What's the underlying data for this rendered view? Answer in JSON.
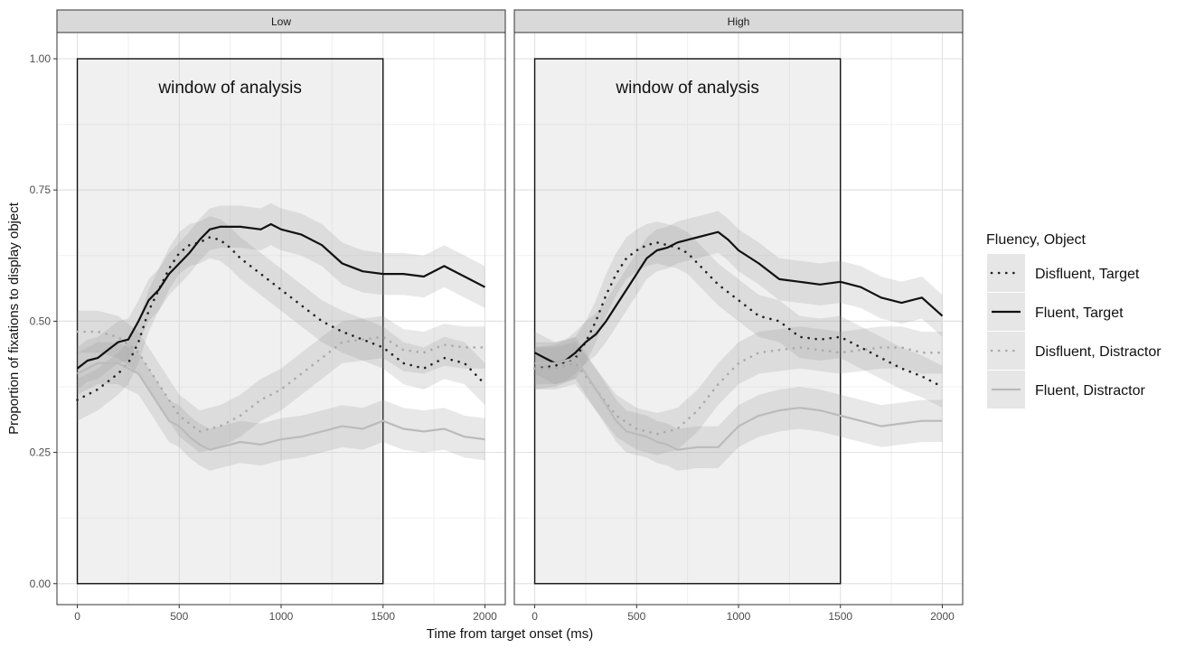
{
  "chart_data": {
    "type": "line",
    "xlabel": "Time from target onset (ms)",
    "ylabel": "Proportion of fixations to display object",
    "xlim": [
      -100,
      2100
    ],
    "ylim": [
      -0.04,
      1.05
    ],
    "x_ticks": [
      0,
      500,
      1000,
      1500,
      2000
    ],
    "x_tick_labels": [
      "0",
      "500",
      "1000",
      "1500",
      "2000"
    ],
    "y_ticks": [
      0,
      0.25,
      0.5,
      0.75,
      1.0
    ],
    "y_tick_labels": [
      "0.00",
      "0.25",
      "0.50",
      "0.75",
      "1.00"
    ],
    "grid": true,
    "ribbon_halfwidth": 0.04,
    "window": {
      "x_start": 0,
      "x_end": 1500,
      "y_start": 0,
      "y_end": 1,
      "label": "window of analysis"
    },
    "legend": {
      "title": "Fluency, Object",
      "position": "right",
      "entries": [
        "Disfluent, Target",
        "Fluent, Target",
        "Disfluent, Distractor",
        "Fluent, Distractor"
      ]
    },
    "panels": [
      {
        "name": "Low",
        "series": [
          {
            "name": "Disfluent, Target",
            "style": "dotted",
            "color": "#222222",
            "x": [
              0,
              100,
              200,
              250,
              300,
              350,
              400,
              450,
              500,
              550,
              600,
              650,
              700,
              750,
              800,
              900,
              1000,
              1100,
              1200,
              1300,
              1400,
              1500,
              1600,
              1700,
              1800,
              1900,
              2000
            ],
            "y": [
              0.35,
              0.37,
              0.4,
              0.42,
              0.46,
              0.52,
              0.56,
              0.6,
              0.63,
              0.645,
              0.65,
              0.66,
              0.655,
              0.64,
              0.62,
              0.59,
              0.56,
              0.53,
              0.5,
              0.48,
              0.465,
              0.45,
              0.42,
              0.41,
              0.43,
              0.42,
              0.38
            ]
          },
          {
            "name": "Fluent, Target",
            "style": "solid",
            "color": "#111111",
            "x": [
              0,
              50,
              100,
              150,
              200,
              250,
              300,
              350,
              400,
              450,
              500,
              550,
              600,
              650,
              700,
              800,
              900,
              950,
              1000,
              1100,
              1200,
              1300,
              1400,
              1500,
              1600,
              1700,
              1800,
              1900,
              2000
            ],
            "y": [
              0.41,
              0.425,
              0.43,
              0.445,
              0.46,
              0.465,
              0.5,
              0.54,
              0.56,
              0.59,
              0.61,
              0.63,
              0.655,
              0.675,
              0.68,
              0.68,
              0.675,
              0.685,
              0.675,
              0.665,
              0.645,
              0.61,
              0.595,
              0.59,
              0.59,
              0.585,
              0.605,
              0.585,
              0.565
            ]
          },
          {
            "name": "Disfluent, Distractor",
            "style": "dotted",
            "color": "#aaaaaa",
            "x": [
              0,
              100,
              200,
              300,
              400,
              500,
              600,
              700,
              800,
              900,
              1000,
              1100,
              1200,
              1300,
              1400,
              1500,
              1600,
              1700,
              1800,
              1900,
              2000
            ],
            "y": [
              0.48,
              0.48,
              0.47,
              0.44,
              0.38,
              0.32,
              0.29,
              0.3,
              0.32,
              0.35,
              0.37,
              0.4,
              0.43,
              0.46,
              0.465,
              0.47,
              0.445,
              0.44,
              0.455,
              0.45,
              0.45
            ]
          },
          {
            "name": "Fluent, Distractor",
            "style": "solid",
            "color": "#bbbbbb",
            "x": [
              0,
              100,
              200,
              300,
              350,
              400,
              450,
              500,
              550,
              600,
              650,
              700,
              800,
              900,
              1000,
              1100,
              1200,
              1300,
              1400,
              1500,
              1600,
              1700,
              1800,
              1900,
              2000
            ],
            "y": [
              0.4,
              0.42,
              0.42,
              0.4,
              0.37,
              0.34,
              0.31,
              0.3,
              0.28,
              0.265,
              0.255,
              0.26,
              0.27,
              0.265,
              0.275,
              0.28,
              0.29,
              0.3,
              0.295,
              0.31,
              0.295,
              0.29,
              0.295,
              0.28,
              0.275
            ]
          }
        ]
      },
      {
        "name": "High",
        "series": [
          {
            "name": "Disfluent, Target",
            "style": "dotted",
            "color": "#222222",
            "x": [
              0,
              100,
              200,
              250,
              300,
              350,
              400,
              450,
              500,
              550,
              600,
              650,
              700,
              750,
              800,
              900,
              1000,
              1100,
              1200,
              1300,
              1400,
              1500,
              1600,
              1700,
              1800,
              1900,
              2000
            ],
            "y": [
              0.41,
              0.415,
              0.43,
              0.46,
              0.5,
              0.55,
              0.59,
              0.62,
              0.635,
              0.645,
              0.65,
              0.645,
              0.64,
              0.63,
              0.61,
              0.57,
              0.54,
              0.51,
              0.5,
              0.47,
              0.465,
              0.47,
              0.45,
              0.43,
              0.41,
              0.395,
              0.375
            ]
          },
          {
            "name": "Fluent, Target",
            "style": "solid",
            "color": "#111111",
            "x": [
              0,
              50,
              100,
              150,
              200,
              250,
              300,
              350,
              400,
              450,
              500,
              550,
              600,
              650,
              700,
              750,
              800,
              850,
              900,
              950,
              1000,
              1100,
              1200,
              1300,
              1400,
              1500,
              1600,
              1700,
              1800,
              1900,
              2000
            ],
            "y": [
              0.44,
              0.43,
              0.42,
              0.425,
              0.44,
              0.46,
              0.475,
              0.5,
              0.53,
              0.56,
              0.59,
              0.62,
              0.635,
              0.64,
              0.65,
              0.655,
              0.66,
              0.665,
              0.67,
              0.655,
              0.635,
              0.61,
              0.58,
              0.575,
              0.57,
              0.575,
              0.565,
              0.545,
              0.535,
              0.545,
              0.51
            ]
          },
          {
            "name": "Disfluent, Distractor",
            "style": "dotted",
            "color": "#aaaaaa",
            "x": [
              0,
              100,
              200,
              300,
              400,
              500,
              600,
              700,
              800,
              900,
              1000,
              1100,
              1200,
              1300,
              1400,
              1500,
              1600,
              1700,
              1800,
              1900,
              2000
            ],
            "y": [
              0.41,
              0.41,
              0.42,
              0.37,
              0.32,
              0.295,
              0.285,
              0.295,
              0.33,
              0.38,
              0.42,
              0.44,
              0.445,
              0.45,
              0.445,
              0.44,
              0.445,
              0.45,
              0.45,
              0.44,
              0.44
            ]
          },
          {
            "name": "Fluent, Distractor",
            "style": "solid",
            "color": "#bbbbbb",
            "x": [
              0,
              100,
              200,
              300,
              350,
              400,
              450,
              500,
              550,
              600,
              650,
              700,
              800,
              900,
              950,
              1000,
              1050,
              1100,
              1200,
              1300,
              1400,
              1500,
              1600,
              1700,
              1800,
              1900,
              2000
            ],
            "y": [
              0.42,
              0.42,
              0.43,
              0.37,
              0.34,
              0.31,
              0.29,
              0.285,
              0.28,
              0.27,
              0.265,
              0.255,
              0.26,
              0.26,
              0.28,
              0.3,
              0.31,
              0.32,
              0.33,
              0.335,
              0.33,
              0.32,
              0.31,
              0.3,
              0.305,
              0.31,
              0.31
            ]
          }
        ]
      }
    ]
  }
}
